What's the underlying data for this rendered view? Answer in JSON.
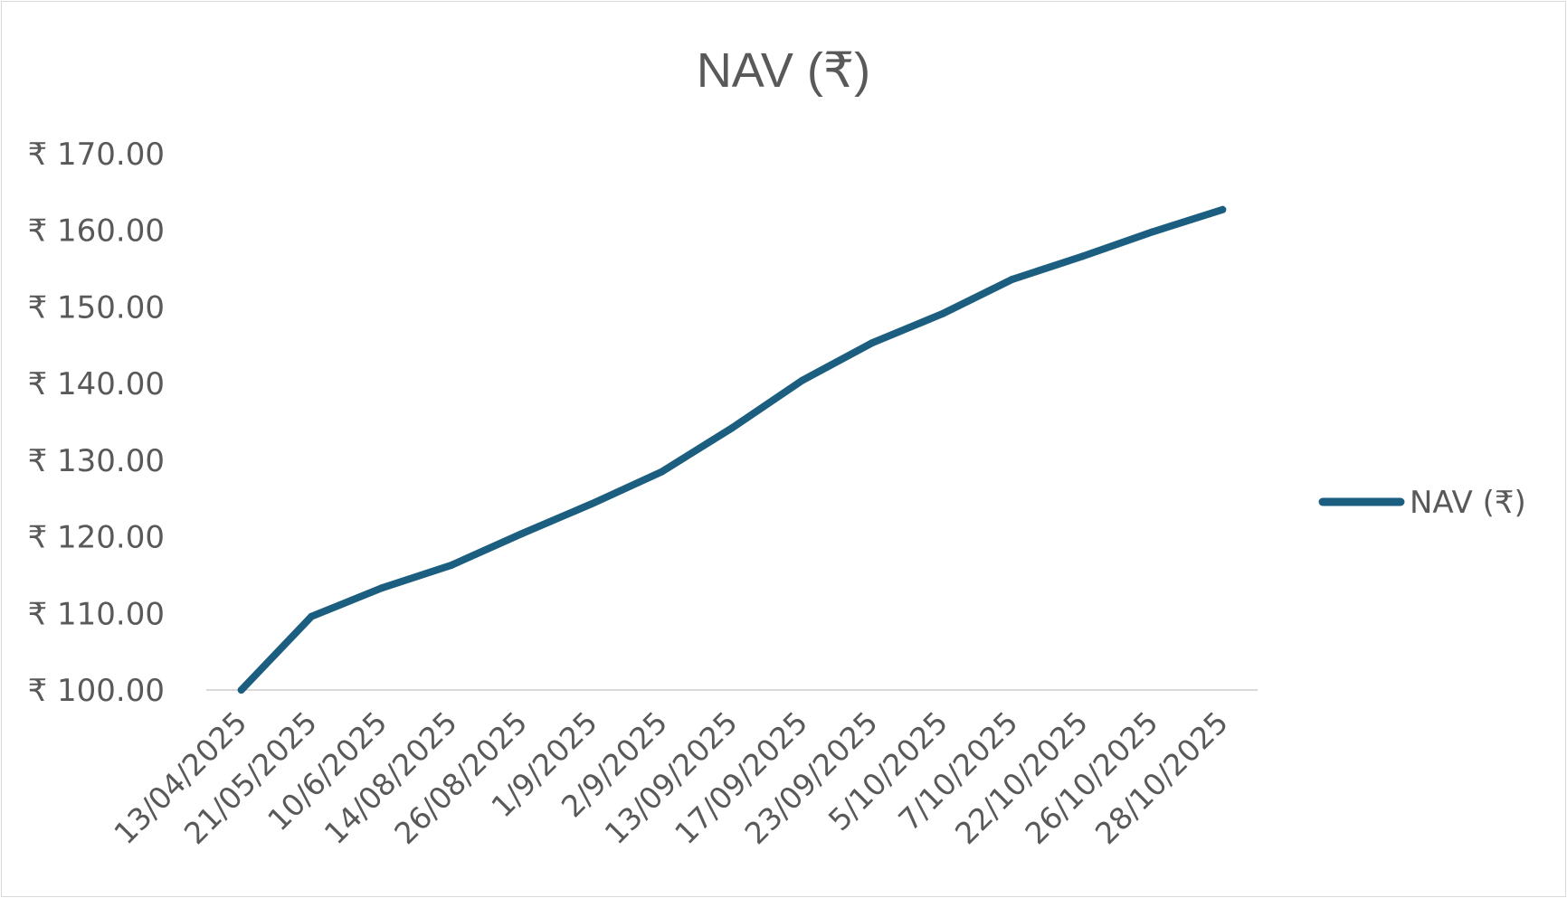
{
  "chart_data": {
    "type": "line",
    "title": "NAV (₹)",
    "xlabel": "",
    "ylabel": "",
    "categories": [
      "13/04/2025",
      "21/05/2025",
      "10/6/2025",
      "14/08/2025",
      "26/08/2025",
      "1/9/2025",
      "2/9/2025",
      "13/09/2025",
      "17/09/2025",
      "23/09/2025",
      "5/10/2025",
      "7/10/2025",
      "22/10/2025",
      "26/10/2025",
      "28/10/2025"
    ],
    "series": [
      {
        "name": "NAV (₹)",
        "color": "#1b5e80",
        "values": [
          100.0,
          109.6,
          113.3,
          116.3,
          120.4,
          124.3,
          128.5,
          134.2,
          140.4,
          145.3,
          149.1,
          153.6,
          156.6,
          159.8,
          162.7
        ]
      }
    ],
    "ylim": [
      100,
      170
    ],
    "yticks": [
      "₹ 100.00",
      "₹ 110.00",
      "₹ 120.00",
      "₹ 130.00",
      "₹ 140.00",
      "₹ 150.00",
      "₹ 160.00",
      "₹ 170.00"
    ],
    "grid": false,
    "legend": "right",
    "axis_color": "#d9d9d9"
  }
}
